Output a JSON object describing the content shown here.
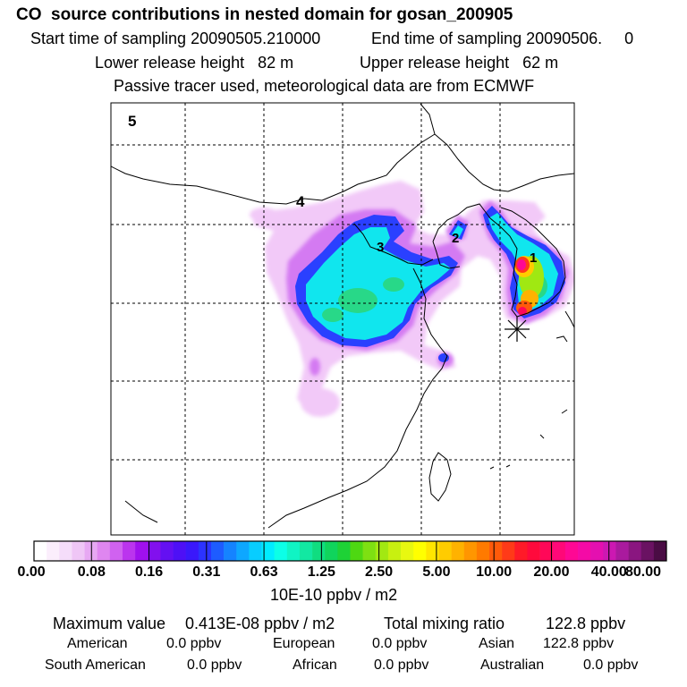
{
  "header": {
    "title": "CO  source contributions in nested domain for gosan_200905",
    "start_label": "Start time of sampling 20090505.210000",
    "end_label": "End time of sampling 20090506.     0",
    "lower_height": "Lower release height   82 m",
    "upper_height": "Upper release height   62 m",
    "note": "Passive tracer used, meteorological data are from ECMWF"
  },
  "map": {
    "labels": [
      "5",
      "4",
      "3",
      "2",
      "1"
    ],
    "marker": "receptor-star"
  },
  "colorbar": {
    "ticks": [
      "0.00",
      "0.08",
      "0.16",
      "0.31",
      "0.63",
      "1.25",
      "2.50",
      "5.00",
      "10.00",
      "20.00",
      "40.00",
      "80.00"
    ],
    "units": "10E-10 ppbv / m2",
    "colors": [
      "#ffffff",
      "#fbeefc",
      "#f5ddfa",
      "#efc6f6",
      "#e7a8f3",
      "#df86f0",
      "#d062f0",
      "#bb34ee",
      "#a010ee",
      "#8210ee",
      "#6410f2",
      "#4e10f6",
      "#3a18fb",
      "#2c33ff",
      "#1e5cff",
      "#1583ff",
      "#0ea7ff",
      "#08cdff",
      "#00ecff",
      "#0cffe7",
      "#10f4c4",
      "#12e8a2",
      "#10dd80",
      "#10d45c",
      "#1ed236",
      "#4ed812",
      "#7ee012",
      "#a2e812",
      "#c8f010",
      "#e8f810",
      "#ffff00",
      "#ffe600",
      "#ffcc00",
      "#ffb200",
      "#ff9600",
      "#ff7a00",
      "#ff5a0a",
      "#ff3a18",
      "#ff1a28",
      "#ff0a3c",
      "#ff0858",
      "#ff0878",
      "#fe0894",
      "#f40aa6",
      "#e410b0",
      "#cc18b2",
      "#aa1a9e",
      "#8a1680",
      "#6a1262",
      "#4a0c44"
    ]
  },
  "stats": {
    "max_label": "Maximum value",
    "max_value": "0.413E-08 ppbv / m2",
    "total_label": "Total mixing ratio",
    "total_value": "122.8 ppbv",
    "american_label": "American",
    "american_value": "0.0 ppbv",
    "european_label": "European",
    "european_value": "0.0 ppbv",
    "asian_label": "Asian",
    "asian_value": "122.8 ppbv",
    "south_american_label": "South American",
    "south_american_value": "0.0 ppbv",
    "african_label": "African",
    "african_value": "0.0 ppbv",
    "australian_label": "Australian",
    "australian_value": "0.0 ppbv"
  }
}
